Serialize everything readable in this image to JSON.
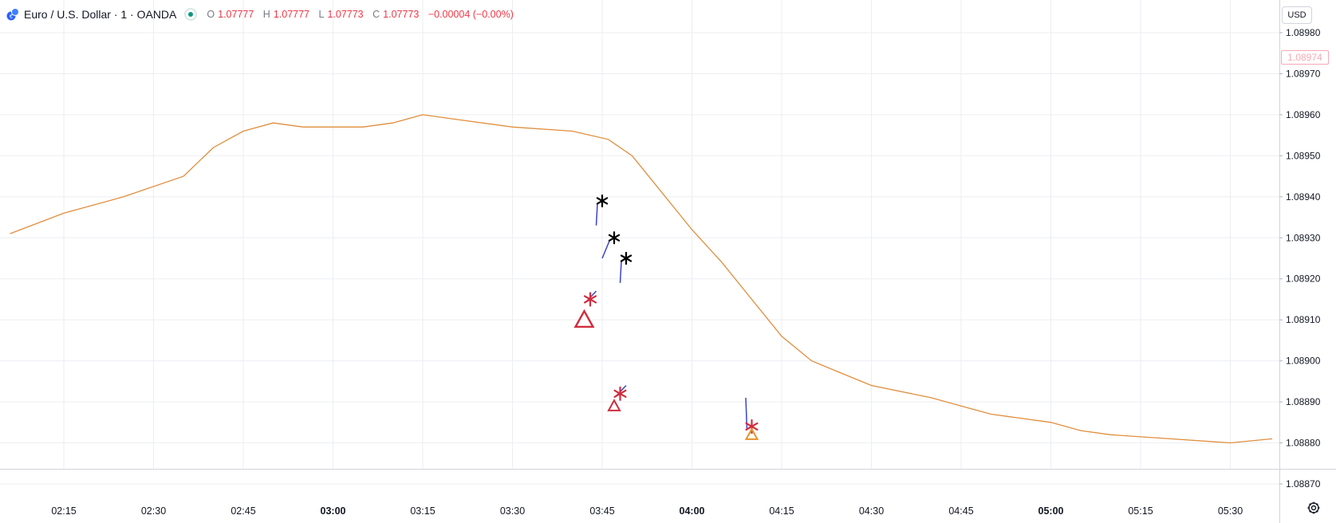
{
  "header": {
    "symbol_title": "Euro / U.S. Dollar · 1 · OANDA",
    "ohlc": {
      "o_label": "O",
      "o_value": "1.07777",
      "h_label": "H",
      "h_value": "1.07777",
      "l_label": "L",
      "l_value": "1.07773",
      "c_label": "C",
      "c_value": "1.07773",
      "change": "−0.00004 (−0.00%)"
    }
  },
  "currency_button": "USD",
  "current_price_label": "1.08974",
  "colors": {
    "up_body": "#f7b3bf",
    "up_wick": "#e08a9a",
    "down_body": "#6f9298",
    "down_wick": "#4f7379",
    "ma_line": "#e08e3c",
    "grid": "#eceef2",
    "annotation_line": "#3b44c8",
    "marker_red": "#d12c3c",
    "marker_orange": "#e6922c"
  },
  "icons": {
    "symbol_logo": "euro-dollar-logo-icon",
    "status": "market-open-dot-icon",
    "settings": "settings-gear-icon",
    "annotation": "asterisk-icon",
    "signal": "triangle-up-icon"
  },
  "chart_data": {
    "type": "candlestick",
    "instrument": "EUR/USD",
    "timeframe": "1",
    "start_time": "02:06",
    "minutes_per_bar": 1,
    "x_tick_labels": [
      "02:15",
      "02:30",
      "02:45",
      "03:00",
      "03:15",
      "03:30",
      "03:45",
      "04:00",
      "04:15",
      "04:30",
      "04:45",
      "05:00",
      "05:15",
      "05:30"
    ],
    "bold_tick_labels": [
      "03:00",
      "04:00",
      "05:00"
    ],
    "y_tick_labels": [
      "1.08980",
      "1.08970",
      "1.08960",
      "1.08950",
      "1.08940",
      "1.08930",
      "1.08920",
      "1.08910",
      "1.08900",
      "1.08890",
      "1.08880",
      "1.08870"
    ],
    "ylim": [
      1.08867,
      1.08985
    ],
    "grid": true,
    "moving_average_points": [
      [
        "02:06",
        1.08931
      ],
      [
        "02:15",
        1.08936
      ],
      [
        "02:25",
        1.0894
      ],
      [
        "02:35",
        1.08945
      ],
      [
        "02:40",
        1.08952
      ],
      [
        "02:45",
        1.08956
      ],
      [
        "02:50",
        1.08958
      ],
      [
        "02:55",
        1.08957
      ],
      [
        "03:00",
        1.08957
      ],
      [
        "03:05",
        1.08957
      ],
      [
        "03:10",
        1.08958
      ],
      [
        "03:15",
        1.0896
      ],
      [
        "03:20",
        1.08959
      ],
      [
        "03:30",
        1.08957
      ],
      [
        "03:40",
        1.08956
      ],
      [
        "03:46",
        1.08954
      ],
      [
        "03:50",
        1.0895
      ],
      [
        "03:55",
        1.08941
      ],
      [
        "04:00",
        1.08932
      ],
      [
        "04:05",
        1.08924
      ],
      [
        "04:10",
        1.08915
      ],
      [
        "04:15",
        1.08906
      ],
      [
        "04:20",
        1.089
      ],
      [
        "04:25",
        1.08897
      ],
      [
        "04:30",
        1.08894
      ],
      [
        "04:40",
        1.08891
      ],
      [
        "04:45",
        1.08889
      ],
      [
        "04:50",
        1.08887
      ],
      [
        "05:00",
        1.08885
      ],
      [
        "05:05",
        1.08883
      ],
      [
        "05:10",
        1.08882
      ],
      [
        "05:20",
        1.08881
      ],
      [
        "05:30",
        1.0888
      ],
      [
        "05:37",
        1.08881
      ]
    ],
    "annotations": [
      {
        "type": "asterisk",
        "time": "03:45",
        "price": 1.08939,
        "color": "black",
        "line_from": [
          "03:44",
          1.08933
        ]
      },
      {
        "type": "asterisk",
        "time": "03:47",
        "price": 1.0893,
        "color": "black",
        "line_from": [
          "03:45",
          1.08925
        ]
      },
      {
        "type": "asterisk",
        "time": "03:49",
        "price": 1.08925,
        "color": "black",
        "line_from": [
          "03:48",
          1.08919
        ]
      },
      {
        "type": "asterisk",
        "time": "03:43",
        "price": 1.08915,
        "color": "red",
        "line_from": [
          "03:44",
          1.08917
        ]
      },
      {
        "type": "asterisk",
        "time": "03:48",
        "price": 1.08892,
        "color": "red",
        "line_from": [
          "03:49",
          1.08894
        ]
      },
      {
        "type": "asterisk",
        "time": "04:10",
        "price": 1.08884,
        "color": "red",
        "line_from": [
          "04:09",
          1.08891
        ]
      },
      {
        "type": "triangle-up",
        "time": "03:42",
        "price": 1.0891,
        "color": "red",
        "size": "large"
      },
      {
        "type": "triangle-up",
        "time": "03:47",
        "price": 1.08889,
        "color": "red",
        "size": "small"
      },
      {
        "type": "triangle-up",
        "time": "04:10",
        "price": 1.08882,
        "color": "orange",
        "size": "small"
      }
    ]
  }
}
